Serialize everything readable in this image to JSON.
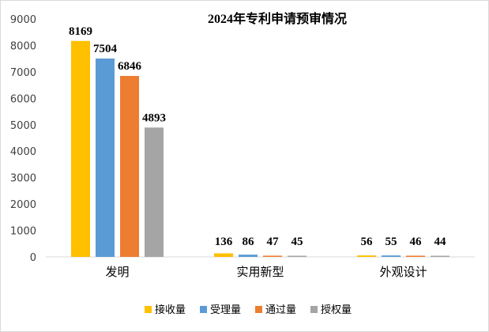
{
  "chart_data": {
    "type": "bar",
    "title": "2024年专利申请预审情况",
    "xlabel": "",
    "ylabel": "",
    "ylim": [
      0,
      9000
    ],
    "yticks": [
      0,
      1000,
      2000,
      3000,
      4000,
      5000,
      6000,
      7000,
      8000,
      9000
    ],
    "grid": false,
    "legend_position": "bottom",
    "categories": [
      "发明",
      "实用新型",
      "外观设计"
    ],
    "series": [
      {
        "name": "接收量",
        "color": "#FFC000",
        "values": [
          8169,
          136,
          56
        ]
      },
      {
        "name": "受理量",
        "color": "#5B9BD5",
        "values": [
          7504,
          86,
          55
        ]
      },
      {
        "name": "通过量",
        "color": "#ED7D31",
        "values": [
          6846,
          47,
          46
        ]
      },
      {
        "name": "授权量",
        "color": "#A5A5A5",
        "values": [
          4893,
          45,
          44
        ]
      }
    ]
  }
}
